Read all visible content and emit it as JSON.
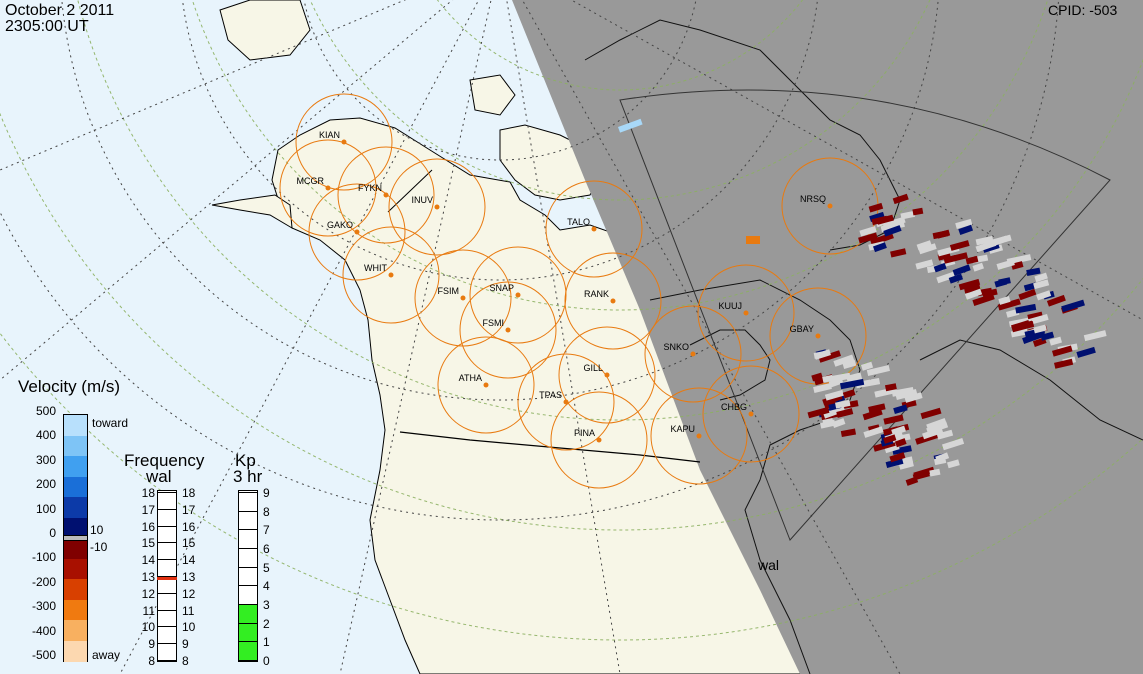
{
  "header": {
    "date": "October  2 2011",
    "time": "2305:00 UT",
    "cpid": "CPID:  -503"
  },
  "stations": [
    {
      "code": "KIAN"
    },
    {
      "code": "MCGR"
    },
    {
      "code": "FYKN"
    },
    {
      "code": "INUV"
    },
    {
      "code": "GAKO"
    },
    {
      "code": "WHIT"
    },
    {
      "code": "FSIM"
    },
    {
      "code": "SNAP"
    },
    {
      "code": "FSMI"
    },
    {
      "code": "RANK"
    },
    {
      "code": "TALO"
    },
    {
      "code": "NRSQ"
    },
    {
      "code": "KUUJ"
    },
    {
      "code": "GBAY"
    },
    {
      "code": "SNKO"
    },
    {
      "code": "GILL"
    },
    {
      "code": "ATHA"
    },
    {
      "code": "TPAS"
    },
    {
      "code": "PINA"
    },
    {
      "code": "KAPU"
    },
    {
      "code": "CHBG"
    }
  ],
  "radar_label": "wal",
  "velocity_legend": {
    "title": "Velocity (m/s)",
    "ticks": [
      "500",
      "400",
      "300",
      "200",
      "100",
      "0",
      "-100",
      "-200",
      "-300",
      "-400",
      "-500"
    ],
    "toward_label": "toward",
    "away_label": "away",
    "band_plus": "10",
    "band_minus": "-10",
    "colors_top_to_bottom": [
      "#b8e0fc",
      "#7ec4f6",
      "#40a0f0",
      "#1a6fd8",
      "#0c3aa8",
      "#001070",
      "#800000",
      "#a81000",
      "#d84000",
      "#f07a10",
      "#f8b060",
      "#fcd8b0"
    ]
  },
  "frequency_legend": {
    "title": "Frequency",
    "subtitle": "wal",
    "left_ticks": [
      "18",
      "17",
      "16",
      "15",
      "14",
      "13",
      "12",
      "11",
      "10",
      "9",
      "8"
    ],
    "right_ticks": [
      "18",
      "17",
      "16",
      "15",
      "14",
      "13",
      "12",
      "11",
      "10",
      "9",
      "8"
    ],
    "value_mhz": 12.9,
    "marker_color": "#e03010"
  },
  "kp_legend": {
    "title": "Kp",
    "subtitle": "3 hr",
    "ticks": [
      "9",
      "8",
      "7",
      "6",
      "5",
      "4",
      "3",
      "2",
      "1",
      "0"
    ],
    "value": 3,
    "fill_color": "#33ee22"
  },
  "colors": {
    "ocean": "#e8f4fc",
    "land": "#f7f6e7",
    "night": "#999999",
    "fov_circle": "#e87a10",
    "toward_dark": "#001070",
    "away_dark": "#800000",
    "ground_scatter": "#d6d6d6"
  }
}
